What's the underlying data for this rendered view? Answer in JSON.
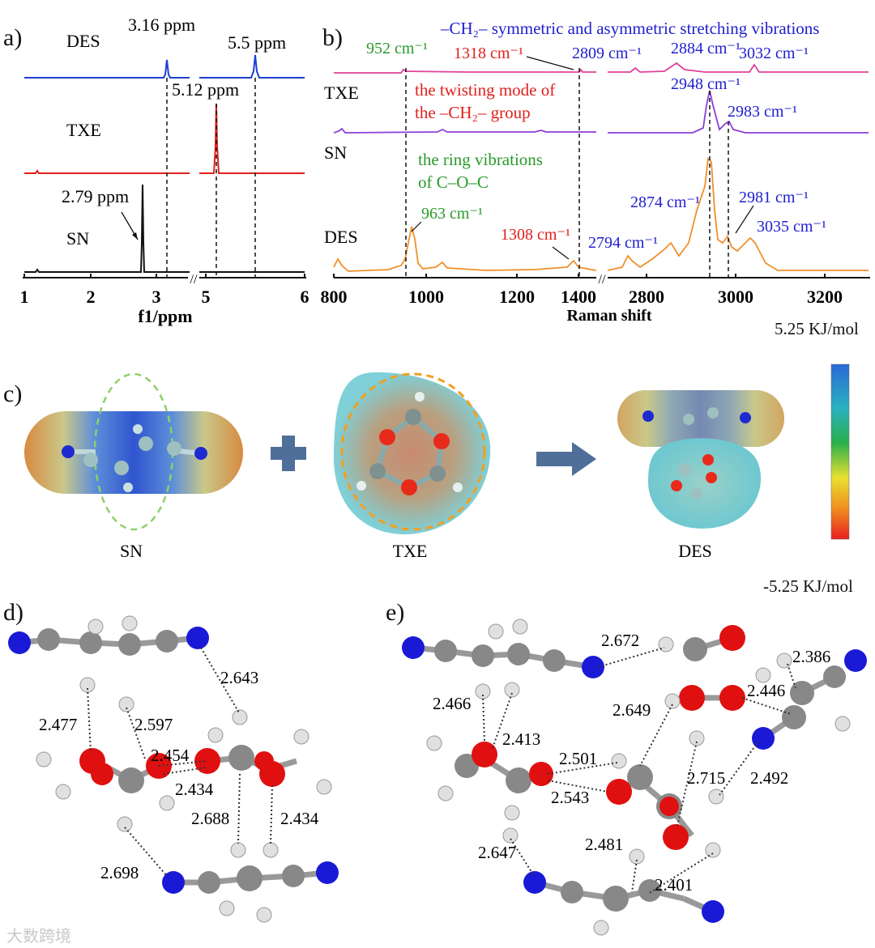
{
  "panels": {
    "a": "a)",
    "b": "b)",
    "c": "c)",
    "d": "d)",
    "e": "e)"
  },
  "panel_a": {
    "trace_labels": [
      "DES",
      "TXE",
      "SN"
    ],
    "peak_labels": {
      "des_1": "3.16 ppm",
      "des_2": "5.5 ppm",
      "txe": "5.12 ppm",
      "sn": "2.79 ppm"
    },
    "x_ticks": [
      "1",
      "2",
      "3",
      "5",
      "6"
    ],
    "xlabel": "f1/ppm",
    "axis_break": "//",
    "colors": {
      "des": "#1f3fd1",
      "txe": "#e0201c",
      "sn": "#111111"
    }
  },
  "panel_b": {
    "title": "–CH₂– symmetric and asymmetric stretching vibrations",
    "trace_labels": [
      "TXE",
      "SN",
      "DES"
    ],
    "annotations": {
      "txe_952": "952 cm⁻¹",
      "txe_1318": "1318 cm⁻¹",
      "txe_2809": "2809 cm⁻¹",
      "txe_2884": "2884 cm⁻¹",
      "txe_3032": "3032 cm⁻¹",
      "twist_line1": "the twisting mode of",
      "twist_line2": "the –CH₂– group",
      "sn_2948": "2948 cm⁻¹",
      "sn_2983": "2983 cm⁻¹",
      "ring_line1": "the ring vibrations",
      "ring_line2": "of C–O–C",
      "des_963": "963 cm⁻¹",
      "des_1308": "1308 cm⁻¹",
      "des_2794": "2794 cm⁻¹",
      "des_2874": "2874 cm⁻¹",
      "des_2981": "2981 cm⁻¹",
      "des_3035": "3035 cm⁻¹"
    },
    "x_ticks": [
      "800",
      "1000",
      "1200",
      "1400",
      "2800",
      "3000",
      "3200"
    ],
    "xlabel": "Raman shift",
    "axis_break": "//",
    "colors": {
      "txe": "#e0409a",
      "sn": "#8c3fd6",
      "des": "#f0902a",
      "green": "#2a9a2a",
      "red": "#e0201c",
      "blue": "#2020d0"
    }
  },
  "panel_c": {
    "labels": [
      "SN",
      "TXE",
      "DES"
    ],
    "scale_max": "5.25 KJ/mol",
    "scale_min": "-5.25 KJ/mol"
  },
  "panel_d": {
    "distances": [
      "2.477",
      "2.597",
      "2.643",
      "2.454",
      "2.434",
      "2.688",
      "2.434",
      "2.698"
    ]
  },
  "panel_e": {
    "distances": [
      "2.672",
      "2.386",
      "2.446",
      "2.466",
      "2.413",
      "2.649",
      "2.501",
      "2.543",
      "2.715",
      "2.492",
      "2.647",
      "2.481",
      "2.401"
    ]
  },
  "watermark": "大数跨境"
}
